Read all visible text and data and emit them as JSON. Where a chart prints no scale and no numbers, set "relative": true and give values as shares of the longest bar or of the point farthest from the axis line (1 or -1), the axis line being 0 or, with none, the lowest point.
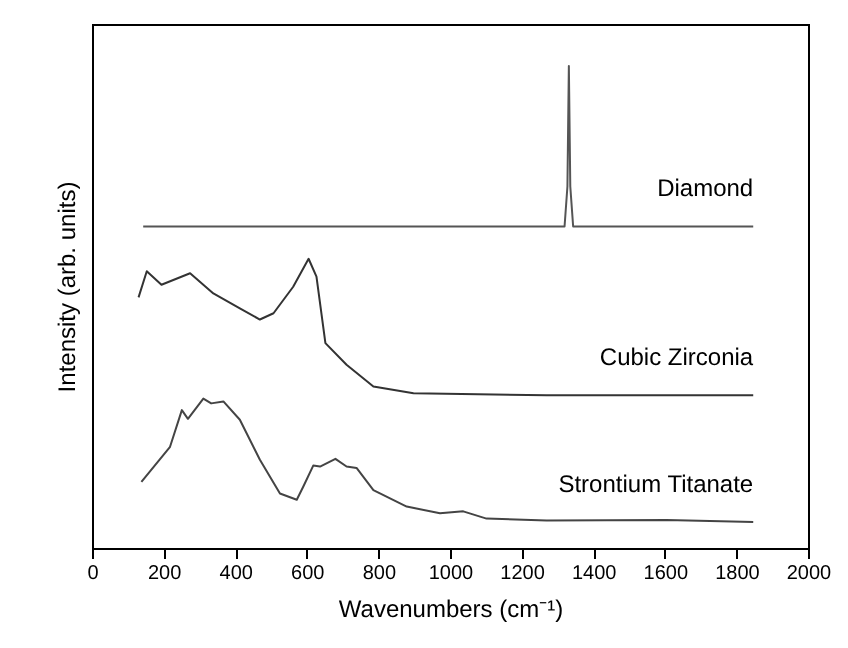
{
  "chart_data": {
    "type": "line",
    "xlabel": "Wavenumbers (cm⁻¹)",
    "ylabel": "Intensity (arb. units)",
    "relative": true,
    "xlim": [
      0,
      2000
    ],
    "xticks": [
      0,
      200,
      400,
      600,
      800,
      1000,
      1200,
      1400,
      1600,
      1800,
      2000
    ],
    "grid": false,
    "marker": "none",
    "line_style": "solid",
    "series": [
      {
        "name": "Diamond",
        "color": "#555555",
        "x": [
          143,
          1320,
          1328,
          1332,
          1336,
          1344,
          1847
        ],
        "values": [
          0.667,
          0.667,
          0.75,
          1.0,
          0.75,
          0.667,
          0.667
        ]
      },
      {
        "name": "Cubic Zirconia",
        "color": "#333333",
        "x": [
          130,
          153,
          194,
          274,
          339,
          413,
          469,
          507,
          562,
          605,
          627,
          652,
          711,
          786,
          898,
          1270,
          1847
        ],
        "values": [
          0.52,
          0.574,
          0.546,
          0.57,
          0.528,
          0.497,
          0.474,
          0.487,
          0.542,
          0.6,
          0.563,
          0.425,
          0.38,
          0.335,
          0.321,
          0.317,
          0.317
        ]
      },
      {
        "name": "Strontium Titanate",
        "color": "#444444",
        "x": [
          138,
          218,
          251,
          268,
          311,
          333,
          367,
          413,
          469,
          525,
          572,
          590,
          618,
          637,
          680,
          711,
          739,
          786,
          879,
          972,
          1037,
          1102,
          1270,
          1605,
          1847
        ],
        "values": [
          0.137,
          0.21,
          0.286,
          0.268,
          0.31,
          0.3,
          0.304,
          0.266,
          0.183,
          0.113,
          0.1,
          0.127,
          0.171,
          0.169,
          0.185,
          0.169,
          0.166,
          0.12,
          0.086,
          0.072,
          0.076,
          0.061,
          0.057,
          0.058,
          0.054
        ]
      }
    ]
  }
}
